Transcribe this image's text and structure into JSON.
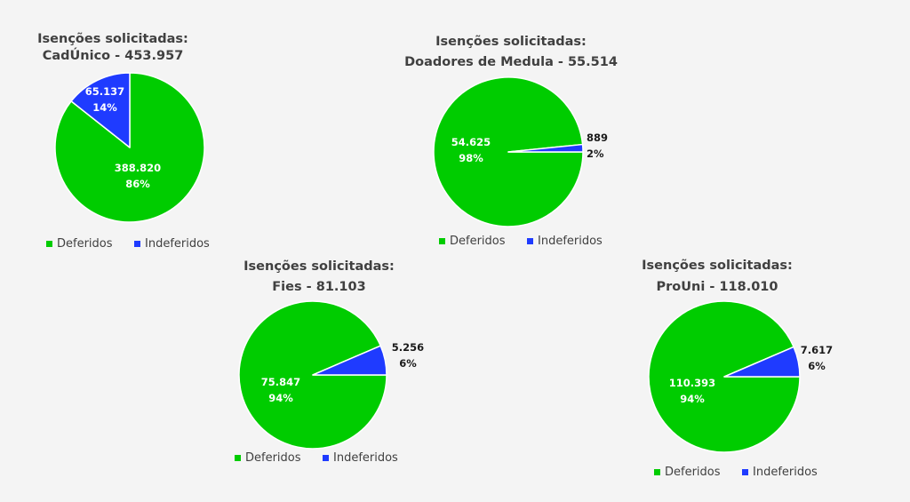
{
  "colors": {
    "deferidos": "#00cc00",
    "indeferidos": "#1f3bff"
  },
  "chart_data": [
    {
      "type": "pie",
      "title_line1": "Isenções solicitadas:",
      "title_line2": "CadÚnico - 453.957",
      "categories": [
        "Deferidos",
        "Indeferidos"
      ],
      "values": [
        388820,
        65137
      ],
      "value_labels": [
        "388.820",
        "65.137"
      ],
      "percent_labels": [
        "86%",
        "14%"
      ],
      "legend": [
        "Deferidos",
        "Indeferidos"
      ]
    },
    {
      "type": "pie",
      "title_line1": "Isenções solicitadas:",
      "title_line2": "Doadores de Medula - 55.514",
      "categories": [
        "Deferidos",
        "Indeferidos"
      ],
      "values": [
        54625,
        889
      ],
      "value_labels": [
        "54.625",
        "889"
      ],
      "percent_labels": [
        "98%",
        "2%"
      ],
      "legend": [
        "Deferidos",
        "Indeferidos"
      ]
    },
    {
      "type": "pie",
      "title_line1": "Isenções solicitadas:",
      "title_line2": "Fies - 81.103",
      "categories": [
        "Deferidos",
        "Indeferidos"
      ],
      "values": [
        75847,
        5256
      ],
      "value_labels": [
        "75.847",
        "5.256"
      ],
      "percent_labels": [
        "94%",
        "6%"
      ],
      "legend": [
        "Deferidos",
        "Indeferidos"
      ]
    },
    {
      "type": "pie",
      "title_line1": "Isenções solicitadas:",
      "title_line2": "ProUni - 118.010",
      "categories": [
        "Deferidos",
        "Indeferidos"
      ],
      "values": [
        110393,
        7617
      ],
      "value_labels": [
        "110.393",
        "7.617"
      ],
      "percent_labels": [
        "94%",
        "6%"
      ],
      "legend": [
        "Deferidos",
        "Indeferidos"
      ]
    }
  ]
}
